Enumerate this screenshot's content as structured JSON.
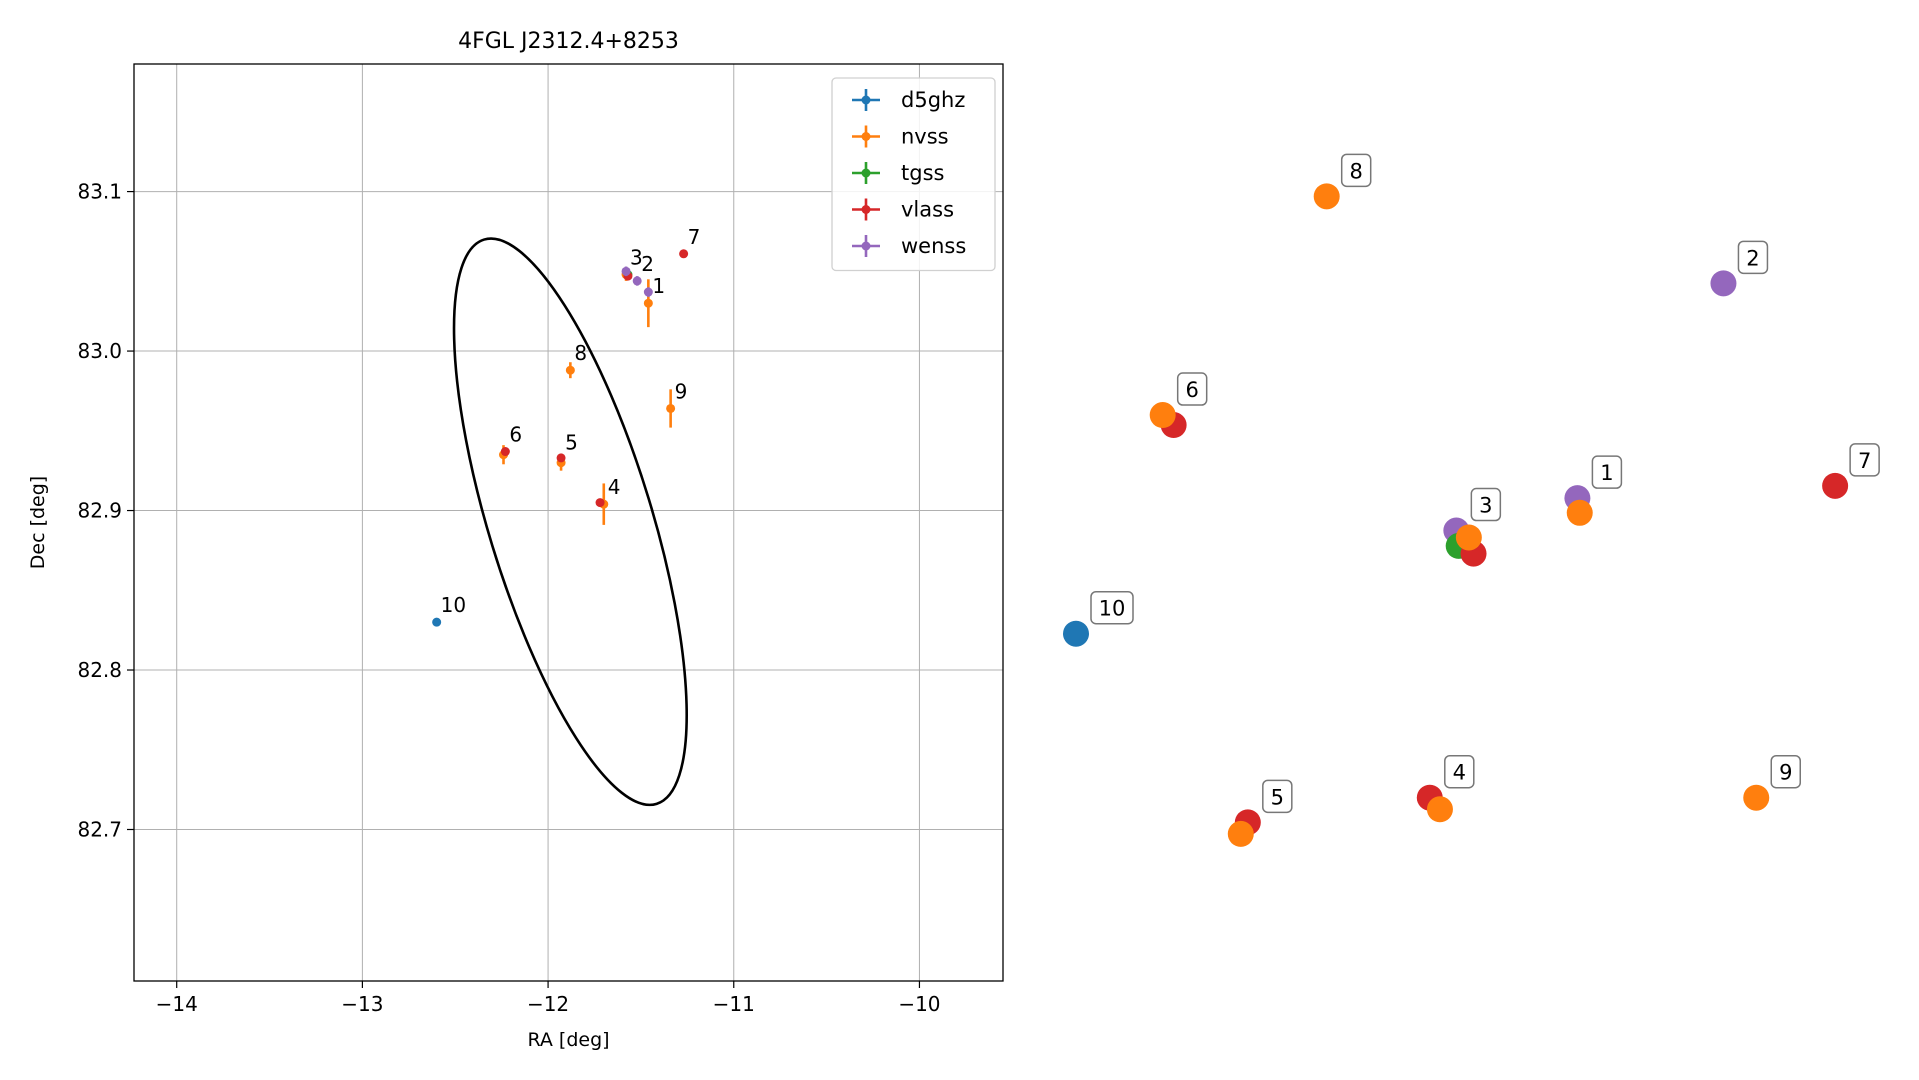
{
  "chart_data": [
    {
      "type": "scatter",
      "title": "4FGL J2312.4+8253",
      "xlabel": "RA [deg]",
      "ylabel": "Dec [deg]",
      "xlim": [
        -14.23,
        -9.55
      ],
      "ylim": [
        82.605,
        83.18
      ],
      "x_ticks": [
        -14,
        -13,
        -12,
        -11,
        -10
      ],
      "x_tick_labels": [
        "−14",
        "−13",
        "−12",
        "−11",
        "−10"
      ],
      "y_ticks": [
        82.7,
        82.8,
        82.9,
        83.0,
        83.1
      ],
      "y_tick_labels": [
        "82.7",
        "82.8",
        "82.9",
        "83.0",
        "83.1"
      ],
      "grid": true,
      "legend_position": "top-right",
      "series": [
        {
          "name": "d5ghz",
          "color": "#1f77b4"
        },
        {
          "name": "nvss",
          "color": "#ff7f0e"
        },
        {
          "name": "tgss",
          "color": "#2ca02c"
        },
        {
          "name": "vlass",
          "color": "#d62728"
        },
        {
          "name": "wenss",
          "color": "#9467bd"
        }
      ],
      "points": [
        {
          "series": "d5ghz",
          "ra": -12.6,
          "dec": 82.83,
          "err": 0
        },
        {
          "series": "nvss",
          "ra": -11.46,
          "dec": 83.03,
          "err": 0.015
        },
        {
          "series": "nvss",
          "ra": -11.58,
          "dec": 83.048,
          "err": 0.004
        },
        {
          "series": "nvss",
          "ra": -11.7,
          "dec": 82.904,
          "err": 0.013
        },
        {
          "series": "nvss",
          "ra": -11.93,
          "dec": 82.93,
          "err": 0.005
        },
        {
          "series": "nvss",
          "ra": -12.24,
          "dec": 82.935,
          "err": 0.006
        },
        {
          "series": "nvss",
          "ra": -11.88,
          "dec": 82.988,
          "err": 0.005
        },
        {
          "series": "nvss",
          "ra": -11.34,
          "dec": 82.964,
          "err": 0.012
        },
        {
          "series": "tgss",
          "ra": -11.57,
          "dec": 83.048,
          "err": 0.002
        },
        {
          "series": "vlass",
          "ra": -11.57,
          "dec": 83.047,
          "err": 0
        },
        {
          "series": "vlass",
          "ra": -11.72,
          "dec": 82.905,
          "err": 0
        },
        {
          "series": "vlass",
          "ra": -11.93,
          "dec": 82.933,
          "err": 0
        },
        {
          "series": "vlass",
          "ra": -12.23,
          "dec": 82.937,
          "err": 0
        },
        {
          "series": "vlass",
          "ra": -11.27,
          "dec": 83.061,
          "err": 0
        },
        {
          "series": "wenss",
          "ra": -11.46,
          "dec": 83.037,
          "err": 0.003
        },
        {
          "series": "wenss",
          "ra": -11.52,
          "dec": 83.044,
          "err": 0.003
        },
        {
          "series": "wenss",
          "ra": -11.58,
          "dec": 83.05,
          "err": 0.003
        }
      ],
      "labels": [
        {
          "text": "1",
          "ra": -11.46,
          "dec": 83.03
        },
        {
          "text": "2",
          "ra": -11.52,
          "dec": 83.044
        },
        {
          "text": "3",
          "ra": -11.58,
          "dec": 83.048
        },
        {
          "text": "4",
          "ra": -11.7,
          "dec": 82.904
        },
        {
          "text": "5",
          "ra": -11.93,
          "dec": 82.932
        },
        {
          "text": "6",
          "ra": -12.23,
          "dec": 82.937
        },
        {
          "text": "7",
          "ra": -11.27,
          "dec": 83.061
        },
        {
          "text": "8",
          "ra": -11.88,
          "dec": 82.988
        },
        {
          "text": "9",
          "ra": -11.34,
          "dec": 82.964
        },
        {
          "text": "10",
          "ra": -12.6,
          "dec": 82.83
        }
      ],
      "ellipse": {
        "center_ra": -11.88,
        "center_dec": 82.893,
        "semi_major_deg": 0.185,
        "semi_minor_deg": 1.143,
        "angle_deg": -17
      }
    },
    {
      "type": "scatter",
      "title": "",
      "series_colors": {
        "d5ghz": "#1f77b4",
        "nvss": "#ff7f0e",
        "tgss": "#2ca02c",
        "vlass": "#d62728",
        "wenss": "#9467bd"
      },
      "groups": [
        {
          "label": "1",
          "points": [
            {
              "series": "wenss",
              "x": 0.642,
              "y": 0.534
            },
            {
              "series": "nvss",
              "x": 0.645,
              "y": 0.553
            }
          ]
        },
        {
          "label": "2",
          "points": [
            {
              "series": "wenss",
              "x": 0.829,
              "y": 0.255
            }
          ]
        },
        {
          "label": "3",
          "points": [
            {
              "series": "wenss",
              "x": 0.487,
              "y": 0.576
            },
            {
              "series": "tgss",
              "x": 0.49,
              "y": 0.596
            },
            {
              "series": "vlass",
              "x": 0.509,
              "y": 0.606
            },
            {
              "series": "nvss",
              "x": 0.503,
              "y": 0.585
            }
          ]
        },
        {
          "label": "4",
          "points": [
            {
              "series": "vlass",
              "x": 0.453,
              "y": 0.923
            },
            {
              "series": "nvss",
              "x": 0.466,
              "y": 0.938
            }
          ]
        },
        {
          "label": "5",
          "points": [
            {
              "series": "vlass",
              "x": 0.22,
              "y": 0.955
            },
            {
              "series": "nvss",
              "x": 0.211,
              "y": 0.97
            }
          ]
        },
        {
          "label": "6",
          "points": [
            {
              "series": "vlass",
              "x": 0.125,
              "y": 0.439
            },
            {
              "series": "nvss",
              "x": 0.111,
              "y": 0.426
            }
          ]
        },
        {
          "label": "7",
          "points": [
            {
              "series": "vlass",
              "x": 0.972,
              "y": 0.518
            }
          ]
        },
        {
          "label": "8",
          "points": [
            {
              "series": "nvss",
              "x": 0.321,
              "y": 0.142
            }
          ]
        },
        {
          "label": "9",
          "points": [
            {
              "series": "nvss",
              "x": 0.871,
              "y": 0.923
            }
          ]
        },
        {
          "label": "10",
          "points": [
            {
              "series": "d5ghz",
              "x": 0.0,
              "y": 0.71
            }
          ]
        }
      ]
    }
  ]
}
